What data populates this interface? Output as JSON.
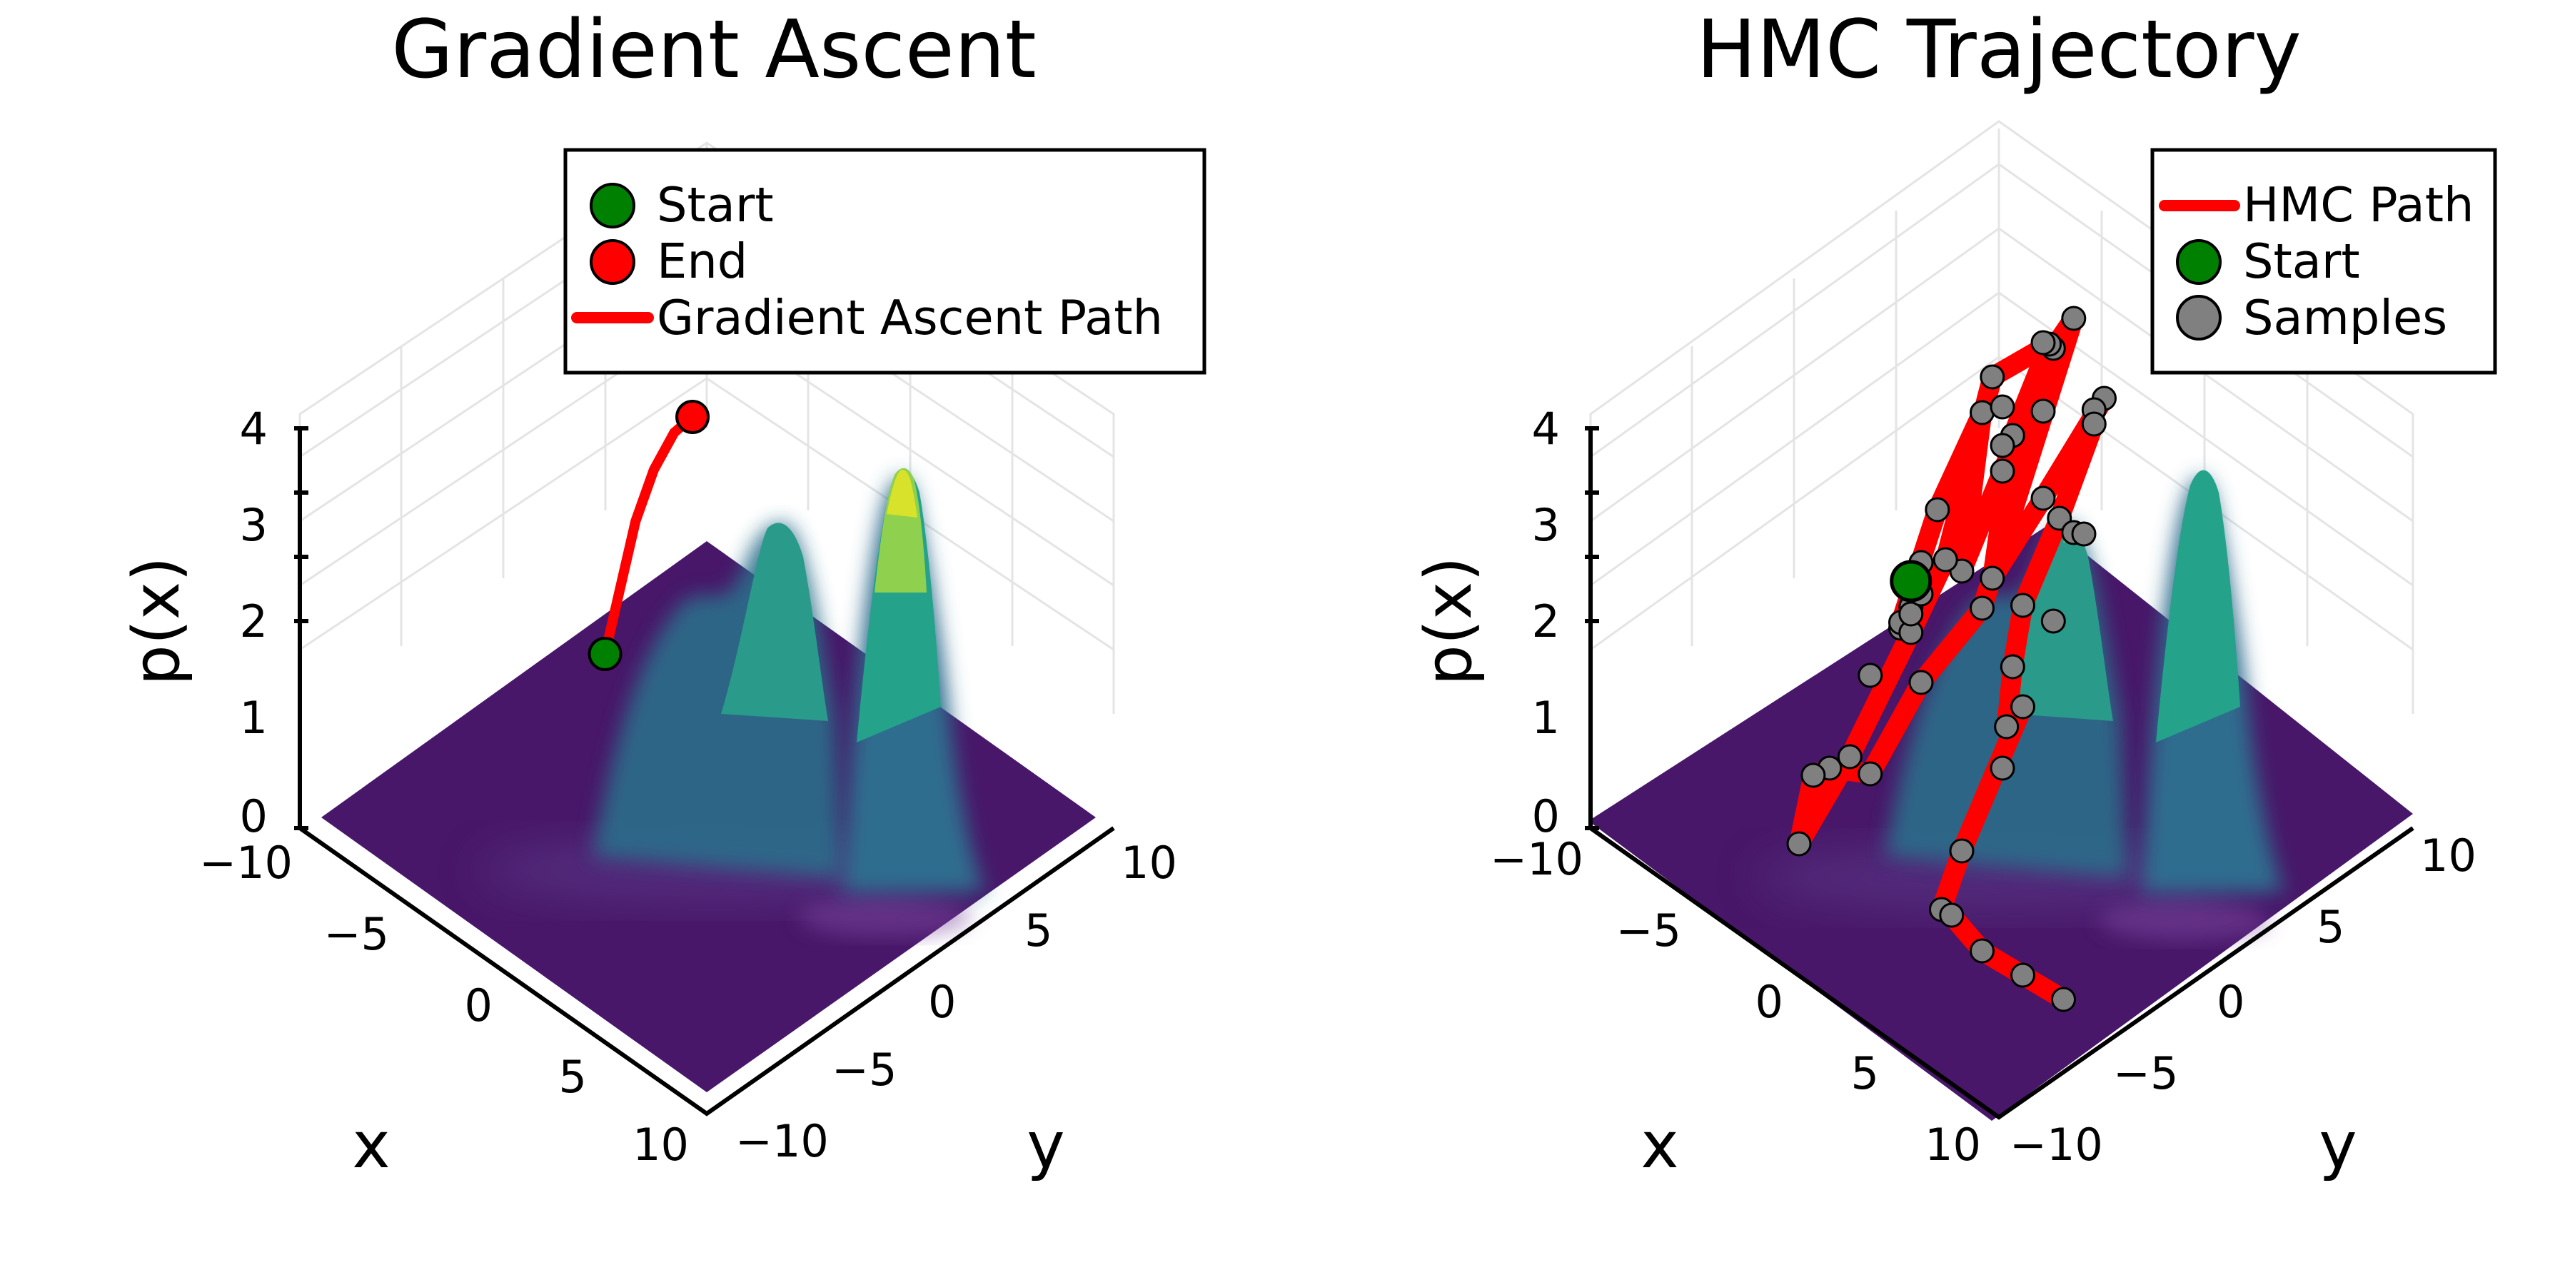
{
  "chart_data": [
    {
      "type": "surface",
      "title": "Gradient Ascent",
      "xlabel": "x",
      "ylabel": "y",
      "zlabel": "p(x)",
      "x_ticks": [
        "−10",
        "−5",
        "0",
        "5",
        "10"
      ],
      "y_ticks": [
        "−10",
        "−5",
        "0",
        "5",
        "10"
      ],
      "z_ticks": [
        "0",
        "1",
        "2",
        "3",
        "4"
      ],
      "xlim": [
        -10,
        10
      ],
      "ylim": [
        -10,
        10
      ],
      "zlim": [
        0,
        4
      ],
      "colormap": [
        "#440154",
        "#3b528b",
        "#21918c",
        "#5ec962",
        "#fde725"
      ],
      "legend_position": "top-right",
      "legend": [
        {
          "label": "Start",
          "kind": "marker",
          "color": "#008000"
        },
        {
          "label": "End",
          "kind": "marker",
          "color": "#ff0000"
        },
        {
          "label": "Gradient Ascent Path",
          "kind": "line",
          "color": "#ff0000"
        }
      ],
      "path": {
        "name": "Gradient Ascent Path",
        "color": "#ff0000",
        "points": [
          {
            "x": -3.6,
            "y": -8.6,
            "z": 0.0
          },
          {
            "x": -4.8,
            "y": -8.3,
            "z": 1.2
          },
          {
            "x": -5.3,
            "y": -7.9,
            "z": 1.7
          },
          {
            "x": -5.7,
            "y": -7.3,
            "z": 2.1
          },
          {
            "x": -6.0,
            "y": -6.7,
            "z": 2.3
          }
        ]
      },
      "start": {
        "x": -3.6,
        "y": -8.6,
        "z": 0.0
      },
      "end": {
        "x": -6.0,
        "y": -6.7,
        "z": 2.3
      }
    },
    {
      "type": "surface",
      "title": "HMC Trajectory",
      "xlabel": "x",
      "ylabel": "y",
      "zlabel": "p(x)",
      "x_ticks": [
        "−10",
        "−5",
        "0",
        "5",
        "10"
      ],
      "y_ticks": [
        "−10",
        "−5",
        "0",
        "5",
        "10"
      ],
      "z_ticks": [
        "0",
        "1",
        "2",
        "3",
        "4"
      ],
      "xlim": [
        -10,
        10
      ],
      "ylim": [
        -10,
        10
      ],
      "zlim": [
        0,
        4
      ],
      "colormap": [
        "#440154",
        "#3b528b",
        "#21918c",
        "#5ec962",
        "#fde725"
      ],
      "legend_position": "top-right",
      "legend": [
        {
          "label": "HMC Path",
          "kind": "line",
          "color": "#ff0000"
        },
        {
          "label": "Start",
          "kind": "marker",
          "color": "#008000"
        },
        {
          "label": "Samples",
          "kind": "marker",
          "color": "#808080"
        }
      ],
      "path": {
        "name": "HMC Path",
        "color": "#ff0000",
        "points": [
          {
            "x": -5.5,
            "y": -10.0,
            "z": 0.0
          },
          {
            "x": -4.5,
            "y": -9.5,
            "z": 0.0
          },
          {
            "x": -4.0,
            "y": -9.0,
            "z": 0.2
          },
          {
            "x": -5.0,
            "y": -8.2,
            "z": 1.3
          },
          {
            "x": -6.0,
            "y": -7.0,
            "z": 2.3
          },
          {
            "x": -4.5,
            "y": -6.5,
            "z": 1.0
          },
          {
            "x": -5.5,
            "y": -5.5,
            "z": 2.0
          },
          {
            "x": -6.5,
            "y": -4.0,
            "z": 3.3
          },
          {
            "x": -7.0,
            "y": -3.5,
            "z": 3.6
          },
          {
            "x": -3.0,
            "y": -4.0,
            "z": 1.2
          },
          {
            "x": -1.0,
            "y": -5.0,
            "z": 0.6
          },
          {
            "x": 1.0,
            "y": -5.5,
            "z": -0.1
          },
          {
            "x": 2.5,
            "y": -6.0,
            "z": 0.1
          },
          {
            "x": 3.5,
            "y": -5.8,
            "z": 0.2
          },
          {
            "x": 4.5,
            "y": -5.5,
            "z": -0.3
          },
          {
            "x": 3.0,
            "y": -4.5,
            "z": 0.5
          },
          {
            "x": 1.0,
            "y": -3.5,
            "z": 1.6
          },
          {
            "x": -1.0,
            "y": -3.8,
            "z": 2.0
          },
          {
            "x": -4.0,
            "y": -4.5,
            "z": 3.3
          },
          {
            "x": -5.5,
            "y": -3.2,
            "z": 3.6
          },
          {
            "x": -3.5,
            "y": -3.0,
            "z": 3.0
          },
          {
            "x": -1.5,
            "y": -2.0,
            "z": 2.0
          },
          {
            "x": -1.0,
            "y": 1.0,
            "z": 3.3
          },
          {
            "x": -2.5,
            "y": 2.5,
            "z": 4.3
          },
          {
            "x": -1.5,
            "y": 3.0,
            "z": 4.4
          },
          {
            "x": -1.0,
            "y": 3.5,
            "z": 4.4
          },
          {
            "x": 0.0,
            "y": 2.8,
            "z": 3.5
          },
          {
            "x": 1.5,
            "y": 2.5,
            "z": 2.8
          },
          {
            "x": 2.5,
            "y": 3.0,
            "z": 2.4
          },
          {
            "x": 3.0,
            "y": 3.2,
            "z": 1.9
          },
          {
            "x": 0.5,
            "y": 1.5,
            "z": 1.5
          },
          {
            "x": 2.5,
            "y": 0.5,
            "z": 0.2
          },
          {
            "x": 4.0,
            "y": 1.0,
            "z": -0.1
          },
          {
            "x": 5.0,
            "y": 2.5,
            "z": 0.2
          },
          {
            "x": 5.5,
            "y": 4.5,
            "z": 0.2
          },
          {
            "x": 5.0,
            "y": 6.0,
            "z": 0.1
          },
          {
            "x": 4.5,
            "y": 7.5,
            "z": 0.0
          }
        ]
      },
      "start": {
        "x": -5.0,
        "y": -9.5,
        "z": 0.4
      },
      "samples": [
        {
          "x": -5.5,
          "y": -10.0,
          "z": 0.0
        },
        {
          "x": -4.5,
          "y": -9.5,
          "z": 0.0
        },
        {
          "x": -4.0,
          "y": -9.0,
          "z": 0.2
        },
        {
          "x": -5.0,
          "y": -8.2,
          "z": 1.3
        },
        {
          "x": -6.0,
          "y": -7.0,
          "z": 2.3
        },
        {
          "x": -4.5,
          "y": -6.5,
          "z": 1.0
        },
        {
          "x": -5.5,
          "y": -5.5,
          "z": 2.0
        },
        {
          "x": -6.5,
          "y": -4.0,
          "z": 3.3
        },
        {
          "x": -7.0,
          "y": -3.5,
          "z": 3.6
        },
        {
          "x": -3.0,
          "y": -4.0,
          "z": 1.2
        },
        {
          "x": -1.0,
          "y": -5.0,
          "z": 0.6
        },
        {
          "x": 1.0,
          "y": -5.5,
          "z": -0.1
        },
        {
          "x": 2.5,
          "y": -6.0,
          "z": 0.1
        },
        {
          "x": 3.5,
          "y": -5.8,
          "z": 0.2
        },
        {
          "x": 4.5,
          "y": -5.5,
          "z": -0.3
        },
        {
          "x": 3.0,
          "y": -4.5,
          "z": 0.5
        },
        {
          "x": 1.0,
          "y": -3.5,
          "z": 1.6
        },
        {
          "x": -1.0,
          "y": -3.8,
          "z": 2.0
        },
        {
          "x": -4.0,
          "y": -4.5,
          "z": 3.3
        },
        {
          "x": -5.5,
          "y": -3.2,
          "z": 3.6
        },
        {
          "x": -3.5,
          "y": -3.0,
          "z": 3.0
        },
        {
          "x": -1.5,
          "y": -2.0,
          "z": 2.0
        },
        {
          "x": -1.0,
          "y": 1.0,
          "z": 3.3
        },
        {
          "x": -2.5,
          "y": 2.5,
          "z": 4.3
        },
        {
          "x": -1.5,
          "y": 3.0,
          "z": 4.4
        },
        {
          "x": -1.0,
          "y": 3.5,
          "z": 4.4
        },
        {
          "x": 0.0,
          "y": 2.8,
          "z": 3.5
        },
        {
          "x": 1.5,
          "y": 2.5,
          "z": 2.8
        },
        {
          "x": 2.5,
          "y": 3.0,
          "z": 2.4
        },
        {
          "x": 3.0,
          "y": 3.2,
          "z": 1.9
        },
        {
          "x": 0.5,
          "y": 1.5,
          "z": 1.5
        },
        {
          "x": 2.5,
          "y": 0.5,
          "z": 0.2
        },
        {
          "x": 4.0,
          "y": 1.0,
          "z": -0.1
        },
        {
          "x": 5.0,
          "y": 2.5,
          "z": 0.2
        },
        {
          "x": 5.5,
          "y": 4.5,
          "z": 0.2
        },
        {
          "x": 5.0,
          "y": 6.0,
          "z": 0.1
        },
        {
          "x": 4.5,
          "y": 7.5,
          "z": 0.0
        },
        {
          "x": -4.5,
          "y": -8.5,
          "z": 0.8
        },
        {
          "x": -3.5,
          "y": -8.0,
          "z": 0.5
        },
        {
          "x": -6.0,
          "y": -6.0,
          "z": 2.5
        },
        {
          "x": -5.0,
          "y": -5.0,
          "z": 2.4
        },
        {
          "x": -2.0,
          "y": -6.0,
          "z": 1.2
        },
        {
          "x": 0.0,
          "y": -6.5,
          "z": 0.6
        },
        {
          "x": -7.5,
          "y": -5.5,
          "z": 3.0
        },
        {
          "x": -3.0,
          "y": -1.0,
          "z": 3.6
        },
        {
          "x": 0.5,
          "y": 4.0,
          "z": 3.6
        },
        {
          "x": 2.0,
          "y": 4.5,
          "z": 3.0
        },
        {
          "x": 1.0,
          "y": 5.0,
          "z": 3.8
        },
        {
          "x": 3.5,
          "y": 3.5,
          "z": 1.6
        }
      ]
    }
  ]
}
